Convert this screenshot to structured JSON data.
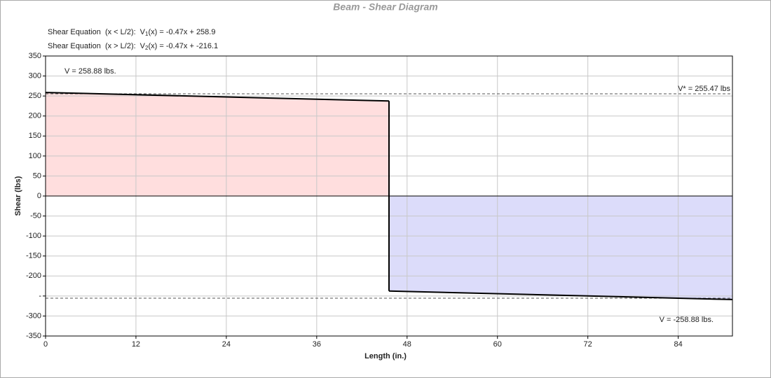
{
  "chart_data": {
    "type": "shear",
    "title": "Beam - Shear Diagram",
    "equations": [
      {
        "label": "Shear Equation  (x < L/2):",
        "fn": "V",
        "sub": "1",
        "expr": "(x) = -0.47x + 258.9"
      },
      {
        "label": "Shear Equation  (x > L/2):",
        "fn": "V",
        "sub": "2",
        "expr": "(x) = -0.47x + -216.1"
      }
    ],
    "x_label": "Length (in.)",
    "y_label": "Shear (lbs)",
    "xlim": [
      0,
      91.2
    ],
    "xticks": [
      0,
      12,
      24,
      36,
      48,
      60,
      72,
      84
    ],
    "ylim": [
      -350,
      350
    ],
    "yticks": [
      350,
      300,
      250,
      200,
      150,
      100,
      50,
      0,
      -50,
      -100,
      -150,
      -200,
      {
        "value": -250,
        "label": "-"
      },
      -300,
      -350
    ],
    "grid": true,
    "segments": [
      {
        "x": [
          0,
          45.6
        ],
        "values": [
          258.88,
          237.47
        ],
        "fill": "#ffdede"
      },
      {
        "x": [
          45.6,
          91.2
        ],
        "values": [
          -237.47,
          -258.88
        ],
        "fill": "#dcdcfa"
      }
    ],
    "line_color": "#000000",
    "ref_lines": [
      255.47,
      -255.47
    ],
    "annotations": [
      "V = 258.88 lbs.",
      "V* = 255.47 lbs",
      "V = -258.88 lbs."
    ]
  }
}
